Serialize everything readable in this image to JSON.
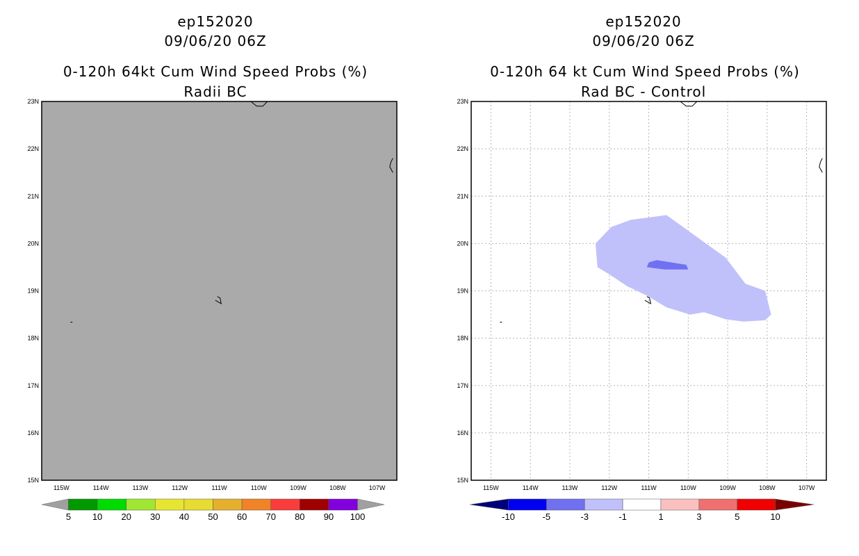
{
  "left_panel": {
    "storm_id": "ep152020",
    "datetime": "09/06/20 06Z",
    "product": "0-120h 64kt Cum Wind Speed Probs (%)",
    "subtitle": "Radii BC"
  },
  "right_panel": {
    "storm_id": "ep152020",
    "datetime": "09/06/20 06Z",
    "product": "0-120h 64 kt Cum Wind Speed Probs (%)",
    "subtitle": "Rad BC - Control"
  },
  "chart_data": [
    {
      "type": "heatmap",
      "title": "0-120h 64kt Cum Wind Speed Probs (%) Radii BC",
      "xlim": [
        -115.5,
        -106.5
      ],
      "ylim": [
        15,
        23
      ],
      "x_ticks": [
        {
          "lon": -115,
          "label": "115W"
        },
        {
          "lon": -114,
          "label": "114W"
        },
        {
          "lon": -113,
          "label": "113W"
        },
        {
          "lon": -112,
          "label": "112W"
        },
        {
          "lon": -111,
          "label": "111W"
        },
        {
          "lon": -110,
          "label": "110W"
        },
        {
          "lon": -109,
          "label": "109W"
        },
        {
          "lon": -108,
          "label": "108W"
        },
        {
          "lon": -107,
          "label": "107W"
        }
      ],
      "y_ticks": [
        {
          "lat": 15,
          "label": "15N"
        },
        {
          "lat": 16,
          "label": "16N"
        },
        {
          "lat": 17,
          "label": "17N"
        },
        {
          "lat": 18,
          "label": "18N"
        },
        {
          "lat": 19,
          "label": "19N"
        },
        {
          "lat": 20,
          "label": "20N"
        },
        {
          "lat": 21,
          "label": "21N"
        },
        {
          "lat": 22,
          "label": "22N"
        },
        {
          "lat": 23,
          "label": "23N"
        }
      ],
      "grid": false,
      "background_color": "#aaaaaa",
      "field": "no values above 5% anywhere in domain",
      "colorbar": {
        "labels": [
          "5",
          "10",
          "20",
          "30",
          "40",
          "50",
          "60",
          "70",
          "80",
          "90",
          "100"
        ],
        "below_color": "#a0a0a0",
        "above_color": "#a0a0a0",
        "colors": [
          "#009a00",
          "#00dc00",
          "#a0e632",
          "#e6e632",
          "#e6dc32",
          "#e6af2d",
          "#f08228",
          "#fa3c3c",
          "#a00000",
          "#8200dc"
        ]
      },
      "contours": []
    },
    {
      "type": "heatmap",
      "title": "0-120h 64 kt Cum Wind Speed Probs (%) Rad BC - Control",
      "xlim": [
        -115.5,
        -106.5
      ],
      "ylim": [
        15,
        23
      ],
      "x_ticks": [
        {
          "lon": -115,
          "label": "115W"
        },
        {
          "lon": -114,
          "label": "114W"
        },
        {
          "lon": -113,
          "label": "113W"
        },
        {
          "lon": -112,
          "label": "112W"
        },
        {
          "lon": -111,
          "label": "111W"
        },
        {
          "lon": -110,
          "label": "110W"
        },
        {
          "lon": -109,
          "label": "109W"
        },
        {
          "lon": -108,
          "label": "108W"
        },
        {
          "lon": -107,
          "label": "107W"
        }
      ],
      "y_ticks": [
        {
          "lat": 15,
          "label": "15N"
        },
        {
          "lat": 16,
          "label": "16N"
        },
        {
          "lat": 17,
          "label": "17N"
        },
        {
          "lat": 18,
          "label": "18N"
        },
        {
          "lat": 19,
          "label": "19N"
        },
        {
          "lat": 20,
          "label": "20N"
        },
        {
          "lat": 21,
          "label": "21N"
        },
        {
          "lat": 22,
          "label": "22N"
        },
        {
          "lat": 23,
          "label": "23N"
        }
      ],
      "grid": true,
      "background_color": "#ffffff",
      "colorbar": {
        "labels": [
          "-10",
          "-5",
          "-3",
          "-1",
          "1",
          "3",
          "5",
          "10"
        ],
        "below_color": "#00007a",
        "above_color": "#7a0000",
        "colors": [
          "#0000f0",
          "#7070f0",
          "#c0c0fa",
          "#ffffff",
          "#fac0c0",
          "#f07070",
          "#f00000"
        ]
      },
      "contours": [
        {
          "range": "-3 to -1",
          "color": "#c0c0fa",
          "points": [
            [
              -112.35,
              20.0
            ],
            [
              -111.95,
              20.35
            ],
            [
              -111.45,
              20.5
            ],
            [
              -110.55,
              20.6
            ],
            [
              -110.05,
              20.3
            ],
            [
              -109.05,
              19.7
            ],
            [
              -108.55,
              19.15
            ],
            [
              -108.05,
              19.0
            ],
            [
              -107.9,
              18.5
            ],
            [
              -108.05,
              18.38
            ],
            [
              -108.6,
              18.35
            ],
            [
              -109.05,
              18.4
            ],
            [
              -109.6,
              18.55
            ],
            [
              -109.95,
              18.5
            ],
            [
              -110.55,
              18.65
            ],
            [
              -111.05,
              18.9
            ],
            [
              -111.55,
              19.1
            ],
            [
              -112.0,
              19.35
            ],
            [
              -112.3,
              19.5
            ]
          ]
        },
        {
          "range": "-5 to -3",
          "color": "#7070f0",
          "points": [
            [
              -111.0,
              19.6
            ],
            [
              -110.8,
              19.65
            ],
            [
              -110.05,
              19.55
            ],
            [
              -110.0,
              19.45
            ],
            [
              -110.6,
              19.45
            ],
            [
              -111.05,
              19.5
            ]
          ]
        }
      ]
    }
  ],
  "coastlines": [
    {
      "name": "island-19n",
      "points": [
        [
          -111.1,
          18.8
        ],
        [
          -110.95,
          18.73
        ],
        [
          -110.98,
          18.85
        ],
        [
          -111.05,
          18.88
        ]
      ]
    },
    {
      "name": "island-18n",
      "points": [
        [
          -114.77,
          18.34
        ],
        [
          -114.72,
          18.34
        ]
      ]
    },
    {
      "name": "coast-top",
      "points": [
        [
          -110.2,
          23.0
        ],
        [
          -110.05,
          22.9
        ],
        [
          -109.9,
          22.9
        ],
        [
          -109.78,
          23.0
        ]
      ]
    },
    {
      "name": "coast-right",
      "points": [
        [
          -106.6,
          21.8
        ],
        [
          -106.65,
          21.72
        ],
        [
          -106.68,
          21.62
        ],
        [
          -106.6,
          21.5
        ]
      ]
    }
  ]
}
